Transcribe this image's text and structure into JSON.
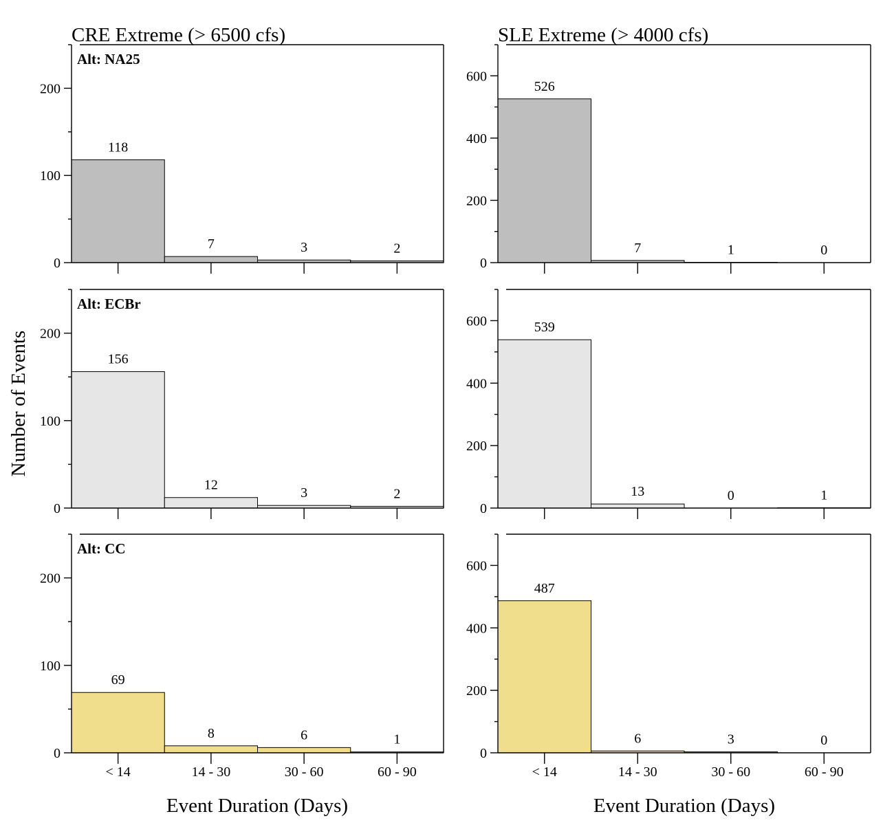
{
  "figure": {
    "ylabel": "Number of Events",
    "col_titles": [
      "CRE Extreme (> 6500 cfs)",
      "SLE Extreme (> 4000 cfs)"
    ],
    "xlabel": "Event Duration (Days)"
  },
  "colors": {
    "NA25": "#bebebe",
    "ECBr": "#e6e6e6",
    "CC": "#f0de8c"
  },
  "chart_data": [
    {
      "type": "bar",
      "panel_label": "Alt: NA25",
      "alt": "NA25",
      "categories": [
        "< 14",
        "14 - 30",
        "30 - 60",
        "60 - 90"
      ],
      "values": [
        118,
        7,
        3,
        2
      ],
      "ylim": [
        0,
        250
      ],
      "yticks": [
        0,
        100,
        200
      ],
      "title": "CRE Extreme (> 6500 cfs)"
    },
    {
      "type": "bar",
      "panel_label": "",
      "alt": "NA25",
      "categories": [
        "< 14",
        "14 - 30",
        "30 - 60",
        "60 - 90"
      ],
      "values": [
        526,
        7,
        1,
        0
      ],
      "ylim": [
        0,
        700
      ],
      "yticks": [
        0,
        200,
        400,
        600
      ],
      "title": "SLE Extreme (> 4000 cfs)"
    },
    {
      "type": "bar",
      "panel_label": "Alt: ECBr",
      "alt": "ECBr",
      "categories": [
        "< 14",
        "14 - 30",
        "30 - 60",
        "60 - 90"
      ],
      "values": [
        156,
        12,
        3,
        2
      ],
      "ylim": [
        0,
        250
      ],
      "yticks": [
        0,
        100,
        200
      ]
    },
    {
      "type": "bar",
      "panel_label": "",
      "alt": "ECBr",
      "categories": [
        "< 14",
        "14 - 30",
        "30 - 60",
        "60 - 90"
      ],
      "values": [
        539,
        13,
        0,
        1
      ],
      "ylim": [
        0,
        700
      ],
      "yticks": [
        0,
        200,
        400,
        600
      ]
    },
    {
      "type": "bar",
      "panel_label": "Alt: CC",
      "alt": "CC",
      "categories": [
        "< 14",
        "14 - 30",
        "30 - 60",
        "60 - 90"
      ],
      "values": [
        69,
        8,
        6,
        1
      ],
      "ylim": [
        0,
        250
      ],
      "yticks": [
        0,
        100,
        200
      ],
      "show_xticklabels": true
    },
    {
      "type": "bar",
      "panel_label": "",
      "alt": "CC",
      "categories": [
        "< 14",
        "14 - 30",
        "30 - 60",
        "60 - 90"
      ],
      "values": [
        487,
        6,
        3,
        0
      ],
      "ylim": [
        0,
        700
      ],
      "yticks": [
        0,
        200,
        400,
        600
      ],
      "show_xticklabels": true
    }
  ]
}
